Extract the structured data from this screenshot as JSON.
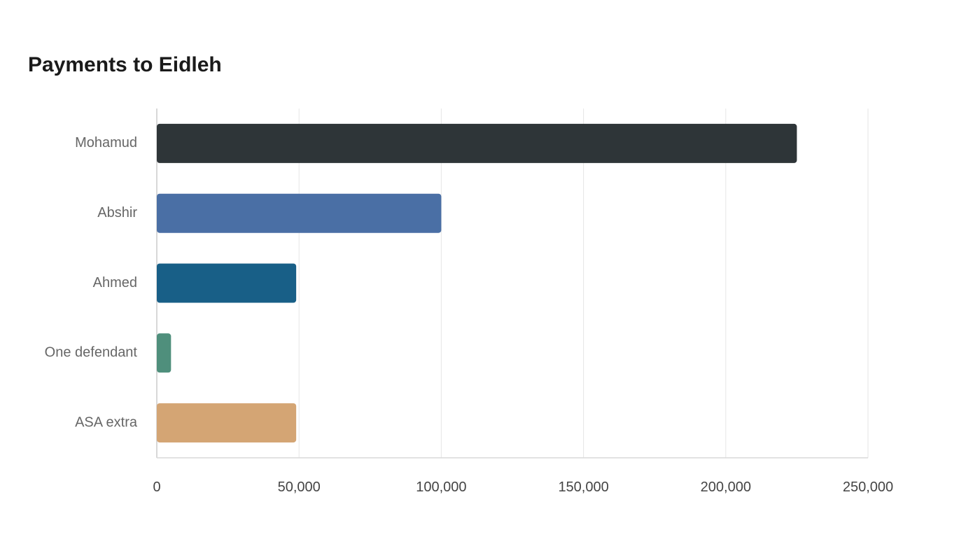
{
  "chart_data": {
    "type": "bar",
    "orientation": "horizontal",
    "title": "Payments to Eidleh",
    "xlabel": "",
    "ylabel": "",
    "categories": [
      "Mohamud",
      "Abshir",
      "Ahmed",
      "One defendant",
      "ASA extra"
    ],
    "values": [
      225000,
      100000,
      49000,
      5000,
      49000
    ],
    "colors": [
      "#2e3538",
      "#4a6fa5",
      "#185f87",
      "#4f8f7c",
      "#d4a574"
    ],
    "xlim": [
      0,
      250000
    ],
    "xticks": [
      0,
      50000,
      100000,
      150000,
      200000,
      250000
    ],
    "xtick_labels": [
      "0",
      "50,000",
      "100,000",
      "150,000",
      "200,000",
      "250,000"
    ],
    "grid": true,
    "legend": "none"
  }
}
